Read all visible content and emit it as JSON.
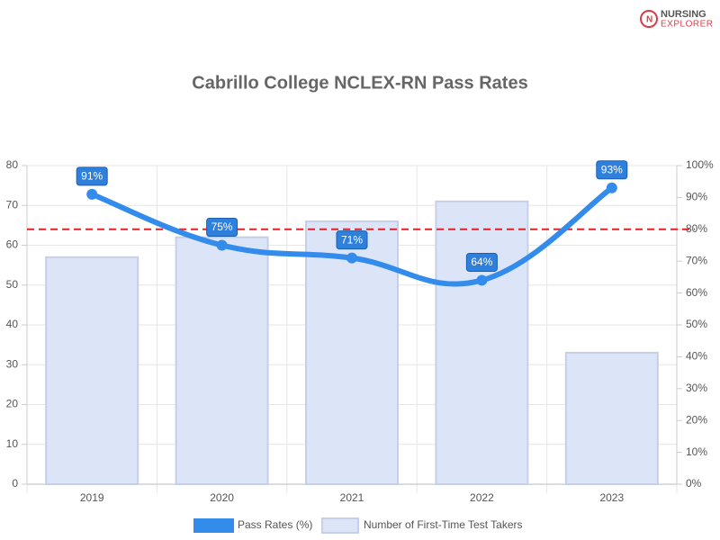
{
  "logo": {
    "line1": "NURSING",
    "line2": "EXPLORER"
  },
  "chart_data": {
    "type": "bar",
    "title": "Cabrillo College NCLEX-RN Pass Rates",
    "categories": [
      "2019",
      "2020",
      "2021",
      "2022",
      "2023"
    ],
    "series": [
      {
        "name": "Pass Rates (%)",
        "type": "line",
        "axis": "y2",
        "color": "#338ceb",
        "values": [
          91,
          75,
          71,
          64,
          93
        ],
        "value_labels": [
          "91%",
          "75%",
          "71%",
          "64%",
          "93%"
        ]
      },
      {
        "name": "Number of First-Time Test Takers",
        "type": "bar",
        "color": "#dce4f7",
        "values": [
          57,
          62,
          66,
          71,
          33
        ]
      }
    ],
    "ylim": [
      0,
      80
    ],
    "yticks": [
      0,
      10,
      20,
      30,
      40,
      50,
      60,
      70,
      80
    ],
    "y2lim": [
      0,
      100
    ],
    "y2ticks": [
      {
        "value": 0,
        "label": "0%"
      },
      {
        "value": 10,
        "label": "10%"
      },
      {
        "value": 20,
        "label": "20%"
      },
      {
        "value": 30,
        "label": "30%"
      },
      {
        "value": 40,
        "label": "40%"
      },
      {
        "value": 50,
        "label": "50%"
      },
      {
        "value": 60,
        "label": "60%"
      },
      {
        "value": 70,
        "label": "70%"
      },
      {
        "value": 80,
        "label": "80%"
      },
      {
        "value": 90,
        "label": "90%"
      },
      {
        "value": 100,
        "label": "100%"
      }
    ],
    "reference_line": {
      "value": 80,
      "axis": "y2",
      "color": "#e0202a"
    },
    "grid": true,
    "legend": "bottom"
  }
}
